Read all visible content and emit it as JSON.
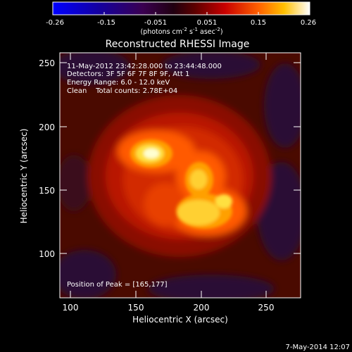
{
  "colors": {
    "background": "#000000",
    "foreground": "#ffffff"
  },
  "colorbar": {
    "ticks": [
      "-0.26",
      "-0.15",
      "-0.051",
      "0.051",
      "0.15",
      "0.26"
    ],
    "unit_prefix": "(photons cm",
    "unit_exp1": "-2",
    "unit_mid": " s",
    "unit_exp2": "-1",
    "unit_mid2": " asec",
    "unit_exp3": "-2",
    "unit_suffix": ")"
  },
  "chart_data": {
    "type": "heatmap",
    "title": "Reconstructed RHESSI Image",
    "xlabel": "Heliocentric X (arcsec)",
    "ylabel": "Heliocentric Y (arcsec)",
    "xlim": [
      85,
      280
    ],
    "ylim": [
      65,
      265
    ],
    "xticks": [
      "100",
      "150",
      "200",
      "250"
    ],
    "yticks": [
      "100",
      "150",
      "200",
      "250"
    ],
    "value_range": [
      -0.26,
      0.26
    ],
    "colormap": "dark-purple-red-orange-yellow-white",
    "bright_sources": [
      {
        "x": 163,
        "y": 177,
        "intensity": 1.0
      },
      {
        "x": 192,
        "y": 160,
        "intensity": 0.75
      },
      {
        "x": 205,
        "y": 125,
        "intensity": 0.85
      }
    ],
    "annotations": [
      "11-May-2012 23:42:28.000 to 23:44:48.000",
      "Detectors: 3F 5F 6F 7F 8F 9F, Att 1",
      "Energy Range: 6.0 - 12.0 keV",
      "Clean    Total counts: 2.78E+04",
      "Position of Peak = [165,177]"
    ]
  },
  "footer_timestamp": "7-May-2014 12:07"
}
